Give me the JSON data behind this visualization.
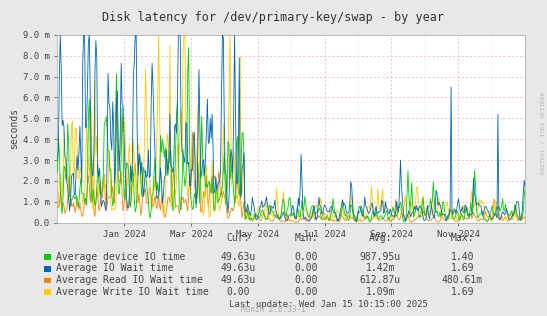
{
  "title": "Disk latency for /dev/primary-key/swap - by year",
  "ylabel": "seconds",
  "watermark": "RRDTOOL / TOBI OETIKER",
  "munin_version": "Munin 2.0.33-1",
  "last_update": "Last update: Wed Jan 15 10:15:00 2025",
  "ylim": [
    0.0,
    0.009
  ],
  "yticks": [
    0.0,
    0.001,
    0.002,
    0.003,
    0.004,
    0.005,
    0.006,
    0.007,
    0.008,
    0.009
  ],
  "ytick_labels": [
    "0.0",
    "1.0 m",
    "2.0 m",
    "3.0 m",
    "4.0 m",
    "5.0 m",
    "6.0 m",
    "7.0 m",
    "8.0 m",
    "9.0 m"
  ],
  "colors": {
    "green": "#00cc00",
    "blue": "#0066b3",
    "orange": "#ff8000",
    "yellow": "#ffcc00",
    "background": "#e8e8e8",
    "plot_bg": "#ffffff",
    "red_grid": "#ffaaaa",
    "gray_grid": "#cccccc"
  },
  "legend_items": [
    {
      "label": "Average device IO time",
      "color": "#00cc00"
    },
    {
      "label": "Average IO Wait time",
      "color": "#0066b3"
    },
    {
      "label": "Average Read IO Wait time",
      "color": "#ff8000"
    },
    {
      "label": "Average Write IO Wait time",
      "color": "#ffcc00"
    }
  ],
  "table_headers": [
    "Cur:",
    "Min:",
    "Avg:",
    "Max:"
  ],
  "table_data": [
    [
      "49.63u",
      "0.00",
      "987.95u",
      "1.40"
    ],
    [
      "49.63u",
      "0.00",
      "1.42m",
      "1.69"
    ],
    [
      "49.63u",
      "0.00",
      "612.87u",
      "480.61m"
    ],
    [
      "0.00",
      "0.00",
      "1.09m",
      "1.69"
    ]
  ],
  "xticklabels": [
    "Jan 2024",
    "Mar 2024",
    "May 2024",
    "Jul 2024",
    "Sep 2024",
    "Nov 2024"
  ],
  "num_points": 500,
  "seed": 42
}
